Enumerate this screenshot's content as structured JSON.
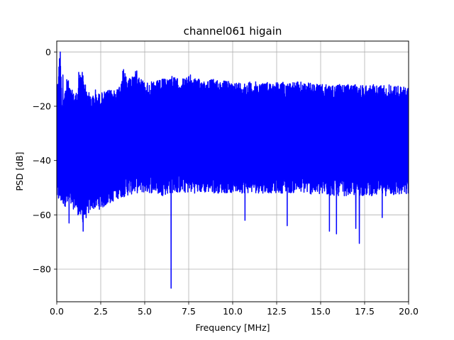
{
  "chart_data": {
    "type": "line",
    "title": "channel061 higain",
    "xlabel": "Frequency [MHz]",
    "ylabel": "PSD [dB]",
    "xlim": [
      0,
      20
    ],
    "ylim": [
      -92,
      4
    ],
    "xticks": [
      0,
      2.5,
      5,
      7.5,
      10,
      12.5,
      15,
      17.5,
      20
    ],
    "xtick_labels": [
      "0.0",
      "2.5",
      "5.0",
      "7.5",
      "10.0",
      "12.5",
      "15.0",
      "17.5",
      "20.0"
    ],
    "yticks": [
      0,
      -20,
      -40,
      -60,
      -80
    ],
    "ytick_labels": [
      "0",
      "−20",
      "−40",
      "−60",
      "−80"
    ],
    "grid": true,
    "series": [
      {
        "color": "#0000ff",
        "x_range": [
          0,
          20
        ],
        "upper_envelope": [
          [
            0.0,
            -15
          ],
          [
            0.15,
            -2
          ],
          [
            0.2,
            0
          ],
          [
            0.3,
            -18
          ],
          [
            0.4,
            -16
          ],
          [
            0.6,
            -9
          ],
          [
            0.8,
            -14
          ],
          [
            1.0,
            -14
          ],
          [
            1.2,
            -15
          ],
          [
            1.3,
            -8
          ],
          [
            1.5,
            -8
          ],
          [
            1.7,
            -14
          ],
          [
            2.0,
            -16
          ],
          [
            2.5,
            -15
          ],
          [
            3.0,
            -14
          ],
          [
            3.5,
            -13
          ],
          [
            3.8,
            -6
          ],
          [
            4.0,
            -10
          ],
          [
            4.5,
            -7
          ],
          [
            5.0,
            -11
          ],
          [
            5.5,
            -11
          ],
          [
            6.0,
            -10
          ],
          [
            6.5,
            -9
          ],
          [
            7.0,
            -10
          ],
          [
            7.5,
            -9
          ],
          [
            8.0,
            -10
          ],
          [
            9.0,
            -10
          ],
          [
            10.0,
            -11
          ],
          [
            11.0,
            -11
          ],
          [
            12.0,
            -11
          ],
          [
            13.0,
            -11
          ],
          [
            14.0,
            -11
          ],
          [
            15.0,
            -12
          ],
          [
            16.0,
            -12
          ],
          [
            17.0,
            -12
          ],
          [
            18.0,
            -12
          ],
          [
            19.0,
            -12
          ],
          [
            20.0,
            -13
          ]
        ],
        "lower_envelope": [
          [
            0.0,
            -55
          ],
          [
            0.5,
            -57
          ],
          [
            1.0,
            -58
          ],
          [
            1.5,
            -63
          ],
          [
            2.0,
            -58
          ],
          [
            2.5,
            -58
          ],
          [
            3.0,
            -56
          ],
          [
            3.5,
            -54
          ],
          [
            4.0,
            -53
          ],
          [
            4.5,
            -52
          ],
          [
            5.0,
            -52
          ],
          [
            5.5,
            -52
          ],
          [
            6.0,
            -53
          ],
          [
            6.5,
            -52
          ],
          [
            7.0,
            -52
          ],
          [
            7.5,
            -52
          ],
          [
            8.0,
            -52
          ],
          [
            9.0,
            -52
          ],
          [
            10.0,
            -52
          ],
          [
            11.0,
            -52
          ],
          [
            12.0,
            -52
          ],
          [
            13.0,
            -52
          ],
          [
            14.0,
            -52
          ],
          [
            15.0,
            -53
          ],
          [
            16.0,
            -53
          ],
          [
            17.0,
            -53
          ],
          [
            18.0,
            -53
          ],
          [
            19.0,
            -53
          ],
          [
            20.0,
            -53
          ]
        ],
        "spikes": [
          [
            0.2,
            0
          ],
          [
            0.35,
            -8.5
          ],
          [
            0.75,
            -14
          ],
          [
            1.25,
            -7.5
          ],
          [
            1.45,
            -7.5
          ],
          [
            2.2,
            -14
          ],
          [
            3.8,
            -6.5
          ],
          [
            4.55,
            -7
          ],
          [
            6.1,
            -10
          ],
          [
            6.55,
            -9
          ],
          [
            7.6,
            -8.5
          ],
          [
            0.7,
            -63
          ],
          [
            1.5,
            -66
          ],
          [
            6.5,
            -87
          ],
          [
            10.7,
            -62
          ],
          [
            13.1,
            -64
          ],
          [
            15.5,
            -66
          ],
          [
            15.9,
            -67
          ],
          [
            17.2,
            -70.5
          ],
          [
            17.0,
            -65
          ],
          [
            18.5,
            -61
          ]
        ]
      }
    ]
  }
}
